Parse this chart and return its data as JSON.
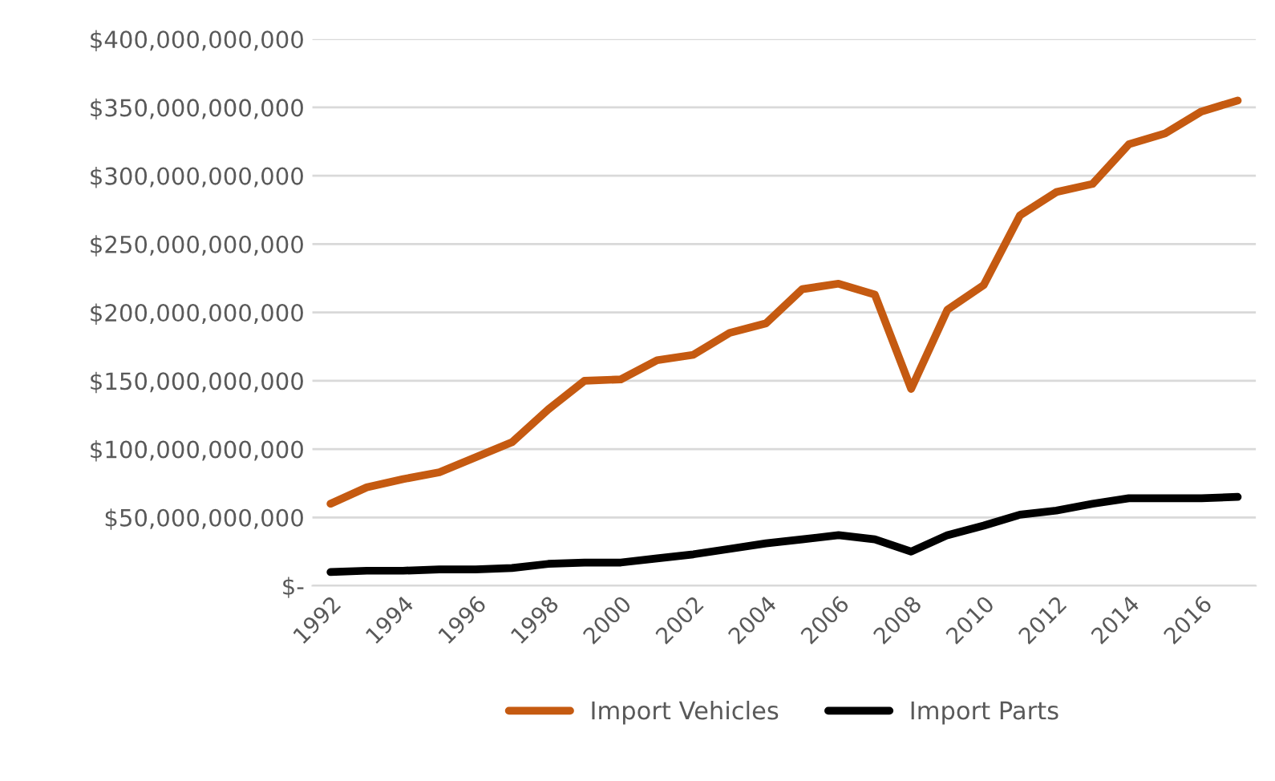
{
  "chart_data": {
    "type": "line",
    "categories": [
      "1992",
      null,
      "1994",
      null,
      "1996",
      null,
      "1998",
      null,
      "2000",
      null,
      "2002",
      null,
      "2004",
      null,
      "2006",
      null,
      "2008",
      null,
      "2010",
      null,
      "2012",
      null,
      "2014",
      null,
      "2016",
      null
    ],
    "series": [
      {
        "name": "Import Vehicles",
        "color": "#c55a11",
        "values": [
          60000000000,
          72000000000,
          78000000000,
          83000000000,
          94000000000,
          105000000000,
          129000000000,
          150000000000,
          151000000000,
          165000000000,
          169000000000,
          185000000000,
          192000000000,
          217000000000,
          221000000000,
          213000000000,
          144000000000,
          202000000000,
          220000000000,
          271000000000,
          288000000000,
          294000000000,
          323000000000,
          331000000000,
          347000000000,
          355000000000
        ]
      },
      {
        "name": "Import Parts",
        "color": "#000000",
        "values": [
          10000000000,
          11000000000,
          11000000000,
          12000000000,
          12000000000,
          13000000000,
          16000000000,
          17000000000,
          17000000000,
          20000000000,
          23000000000,
          27000000000,
          31000000000,
          34000000000,
          37000000000,
          34000000000,
          25000000000,
          37000000000,
          44000000000,
          52000000000,
          55000000000,
          60000000000,
          64000000000,
          64000000000,
          64000000000,
          65000000000
        ]
      }
    ],
    "ylim": [
      0,
      400000000000
    ],
    "yticks": [
      {
        "value": 0,
        "label": "$-"
      },
      {
        "value": 50000000000,
        "label": "$50,000,000,000"
      },
      {
        "value": 100000000000,
        "label": "$100,000,000,000"
      },
      {
        "value": 150000000000,
        "label": "$150,000,000,000"
      },
      {
        "value": 200000000000,
        "label": "$200,000,000,000"
      },
      {
        "value": 250000000000,
        "label": "$250,000,000,000"
      },
      {
        "value": 300000000000,
        "label": "$300,000,000,000"
      },
      {
        "value": 350000000000,
        "label": "$350,000,000,000"
      },
      {
        "value": 400000000000,
        "label": "$400,000,000,000"
      }
    ],
    "grid": "y",
    "legend": "bottom",
    "marker": "none",
    "line_style": "solid"
  }
}
